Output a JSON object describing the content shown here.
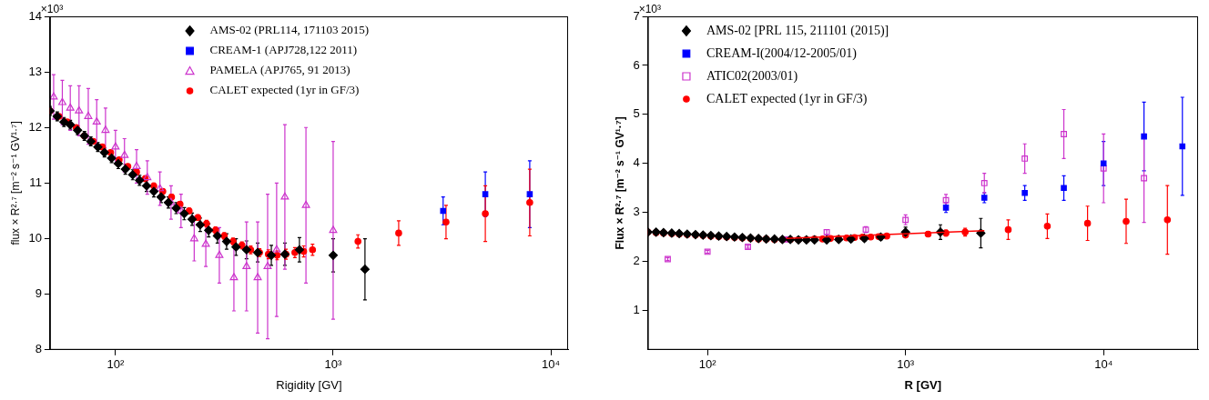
{
  "chart_data": [
    {
      "type": "scatter",
      "log": "x",
      "grid": false,
      "legend": "upper center",
      "xlabel": "Rigidity [GV]",
      "ylabel": "flux × R²·⁷ [m⁻² s⁻¹ GV¹·⁷]",
      "annotations": [
        {
          "text": "×10³"
        }
      ],
      "xlim": [
        50,
        12000
      ],
      "ylim": [
        8,
        14
      ],
      "xticks": [
        {
          "value": 100,
          "label": "10²"
        },
        {
          "value": 1000,
          "label": "10³"
        },
        {
          "value": 10000,
          "label": "10⁴"
        }
      ],
      "yticks": [
        8,
        9,
        10,
        11,
        12,
        13,
        14
      ],
      "series": [
        {
          "name": "AMS-02 (PRL114, 171103 2015)",
          "color": "#000000",
          "marker": "diamond",
          "x": [
            50,
            54,
            58,
            62,
            67,
            72,
            77,
            83,
            89,
            96,
            103,
            111,
            120,
            129,
            139,
            150,
            162,
            175,
            190,
            207,
            225,
            245,
            268,
            294,
            324,
            358,
            400,
            450,
            520,
            600,
            700,
            1000,
            1400
          ],
          "values": [
            12.3,
            12.2,
            12.1,
            12.05,
            11.95,
            11.85,
            11.75,
            11.65,
            11.55,
            11.45,
            11.35,
            11.25,
            11.15,
            11.05,
            10.95,
            10.85,
            10.75,
            10.65,
            10.55,
            10.45,
            10.35,
            10.25,
            10.15,
            10.05,
            9.95,
            9.85,
            9.8,
            9.75,
            9.7,
            9.72,
            9.8,
            9.7,
            9.45
          ],
          "errors": [
            0.08,
            0.08,
            0.08,
            0.08,
            0.08,
            0.08,
            0.08,
            0.08,
            0.08,
            0.08,
            0.09,
            0.09,
            0.09,
            0.09,
            0.1,
            0.1,
            0.1,
            0.1,
            0.1,
            0.11,
            0.11,
            0.12,
            0.12,
            0.13,
            0.14,
            0.15,
            0.16,
            0.17,
            0.18,
            0.2,
            0.22,
            0.3,
            0.55
          ]
        },
        {
          "name": "CREAM-1 (APJ728,122 2011)",
          "color": "#0000ff",
          "marker": "square",
          "x": [
            3200,
            5000,
            8000
          ],
          "values": [
            10.5,
            10.8,
            10.8
          ],
          "errors": [
            0.25,
            0.4,
            0.6
          ]
        },
        {
          "name": "PAMELA (APJ765, 91 2013)",
          "color": "#cc33cc",
          "marker": "open_triangle",
          "x": [
            52,
            57,
            62,
            68,
            75,
            82,
            90,
            100,
            110,
            125,
            140,
            160,
            180,
            200,
            230,
            260,
            300,
            350,
            400,
            450,
            500,
            550,
            600,
            750,
            1000
          ],
          "values": [
            12.55,
            12.45,
            12.35,
            12.3,
            12.2,
            12.1,
            11.95,
            11.65,
            11.5,
            11.3,
            11.1,
            10.9,
            10.65,
            10.5,
            10.0,
            9.9,
            9.7,
            9.3,
            9.5,
            9.3,
            9.5,
            9.8,
            10.75,
            10.6,
            10.15
          ],
          "errors": [
            0.4,
            0.4,
            0.4,
            0.45,
            0.5,
            0.4,
            0.4,
            0.3,
            0.3,
            0.3,
            0.3,
            0.3,
            0.3,
            0.3,
            0.4,
            0.4,
            0.5,
            0.6,
            0.8,
            1.0,
            1.3,
            1.2,
            1.3,
            1.4,
            1.6
          ]
        },
        {
          "name": "CALET expected (1yr in GF/3)",
          "color": "#ff0000",
          "marker": "circle",
          "x": [
            50,
            55,
            60,
            66,
            72,
            79,
            87,
            95,
            104,
            114,
            125,
            137,
            150,
            165,
            181,
            198,
            218,
            239,
            262,
            288,
            316,
            347,
            381,
            418,
            459,
            504,
            553,
            607,
            667,
            732,
            804,
            1300,
            2000,
            3300,
            5000,
            8000
          ],
          "values": [
            12.3,
            12.2,
            12.1,
            12.0,
            11.85,
            11.75,
            11.65,
            11.55,
            11.42,
            11.3,
            11.2,
            11.08,
            10.95,
            10.85,
            10.75,
            10.62,
            10.5,
            10.38,
            10.27,
            10.15,
            10.05,
            9.95,
            9.88,
            9.8,
            9.75,
            9.72,
            9.7,
            9.72,
            9.75,
            9.77,
            9.8,
            9.95,
            10.1,
            10.3,
            10.45,
            10.65
          ],
          "errors": [
            0.04,
            0.04,
            0.04,
            0.04,
            0.04,
            0.04,
            0.04,
            0.04,
            0.04,
            0.04,
            0.05,
            0.05,
            0.05,
            0.05,
            0.05,
            0.05,
            0.05,
            0.05,
            0.06,
            0.06,
            0.06,
            0.06,
            0.06,
            0.07,
            0.07,
            0.08,
            0.08,
            0.09,
            0.09,
            0.1,
            0.1,
            0.12,
            0.22,
            0.3,
            0.5,
            0.6
          ]
        }
      ]
    },
    {
      "type": "scatter",
      "log": "x",
      "grid": false,
      "legend": "upper left",
      "xlabel": "R [GV]",
      "ylabel": "Flux × R²·⁷ [m⁻² s⁻¹ GV¹·⁷]",
      "annotations": [
        {
          "text": "×10³"
        }
      ],
      "xlim": [
        50,
        30000
      ],
      "ylim": [
        0.2,
        7
      ],
      "xticks": [
        {
          "value": 100,
          "label": "10²"
        },
        {
          "value": 1000,
          "label": "10³"
        },
        {
          "value": 10000,
          "label": "10⁴"
        }
      ],
      "yticks": [
        1,
        2,
        3,
        4,
        5,
        6,
        7
      ],
      "lines": [
        {
          "color": "#ff0000",
          "line_style": "solid",
          "x": [
            250,
            2500
          ],
          "values": [
            2.47,
            2.63
          ]
        }
      ],
      "series": [
        {
          "name": "AMS-02 [PRL 115, 211101 (2015)]",
          "color": "#000000",
          "marker": "diamond",
          "x": [
            50,
            55,
            60,
            66,
            72,
            79,
            87,
            95,
            104,
            114,
            125,
            137,
            150,
            165,
            181,
            198,
            218,
            239,
            262,
            288,
            316,
            347,
            400,
            460,
            530,
            620,
            750,
            1000,
            1500,
            2400
          ],
          "values": [
            2.6,
            2.6,
            2.59,
            2.58,
            2.57,
            2.56,
            2.55,
            2.54,
            2.53,
            2.52,
            2.51,
            2.5,
            2.49,
            2.48,
            2.47,
            2.46,
            2.46,
            2.45,
            2.45,
            2.44,
            2.44,
            2.44,
            2.44,
            2.45,
            2.46,
            2.47,
            2.5,
            2.6,
            2.6,
            2.58
          ],
          "errors": [
            0.03,
            0.03,
            0.03,
            0.03,
            0.03,
            0.03,
            0.03,
            0.03,
            0.03,
            0.03,
            0.03,
            0.03,
            0.03,
            0.03,
            0.03,
            0.03,
            0.03,
            0.03,
            0.03,
            0.03,
            0.03,
            0.03,
            0.04,
            0.04,
            0.05,
            0.05,
            0.06,
            0.1,
            0.15,
            0.3
          ]
        },
        {
          "name": "CREAM-I(2004/12-2005/01)",
          "color": "#0000ff",
          "marker": "square",
          "x": [
            1600,
            2500,
            4000,
            6300,
            10000,
            16000,
            25000
          ],
          "values": [
            3.1,
            3.3,
            3.4,
            3.5,
            4.0,
            4.55,
            4.35
          ],
          "errors": [
            0.1,
            0.1,
            0.15,
            0.25,
            0.45,
            0.7,
            1.0
          ]
        },
        {
          "name": "ATIC02(2003/01)",
          "color": "#cc33cc",
          "marker": "open_square",
          "x": [
            63,
            100,
            160,
            250,
            400,
            630,
            1000,
            1600,
            2500,
            4000,
            6300,
            10000,
            16000
          ],
          "values": [
            2.05,
            2.2,
            2.3,
            2.45,
            2.6,
            2.65,
            2.85,
            3.25,
            3.6,
            4.1,
            4.6,
            3.9,
            3.7
          ],
          "errors": [
            0.03,
            0.03,
            0.03,
            0.04,
            0.05,
            0.06,
            0.1,
            0.12,
            0.2,
            0.3,
            0.5,
            0.7,
            0.9
          ]
        },
        {
          "name": "CALET expected (1yr in GF/3)",
          "color": "#ff0000",
          "marker": "circle",
          "x": [
            50,
            55,
            60,
            66,
            72,
            79,
            87,
            95,
            104,
            114,
            125,
            137,
            150,
            165,
            181,
            198,
            218,
            239,
            262,
            288,
            316,
            347,
            381,
            418,
            459,
            504,
            553,
            607,
            667,
            732,
            804,
            1000,
            1300,
            1600,
            2000,
            3300,
            5200,
            8300,
            13000,
            21000
          ],
          "values": [
            2.6,
            2.59,
            2.58,
            2.57,
            2.56,
            2.55,
            2.54,
            2.53,
            2.52,
            2.51,
            2.5,
            2.49,
            2.48,
            2.47,
            2.46,
            2.46,
            2.45,
            2.45,
            2.45,
            2.45,
            2.45,
            2.46,
            2.46,
            2.47,
            2.47,
            2.48,
            2.49,
            2.5,
            2.5,
            2.51,
            2.52,
            2.54,
            2.56,
            2.58,
            2.6,
            2.65,
            2.72,
            2.78,
            2.82,
            2.85
          ],
          "errors": [
            0.02,
            0.02,
            0.02,
            0.02,
            0.02,
            0.02,
            0.02,
            0.02,
            0.02,
            0.02,
            0.02,
            0.02,
            0.02,
            0.02,
            0.02,
            0.02,
            0.02,
            0.02,
            0.02,
            0.02,
            0.02,
            0.02,
            0.02,
            0.02,
            0.02,
            0.02,
            0.02,
            0.02,
            0.02,
            0.02,
            0.03,
            0.04,
            0.05,
            0.06,
            0.08,
            0.2,
            0.25,
            0.35,
            0.45,
            0.7
          ]
        }
      ]
    }
  ]
}
